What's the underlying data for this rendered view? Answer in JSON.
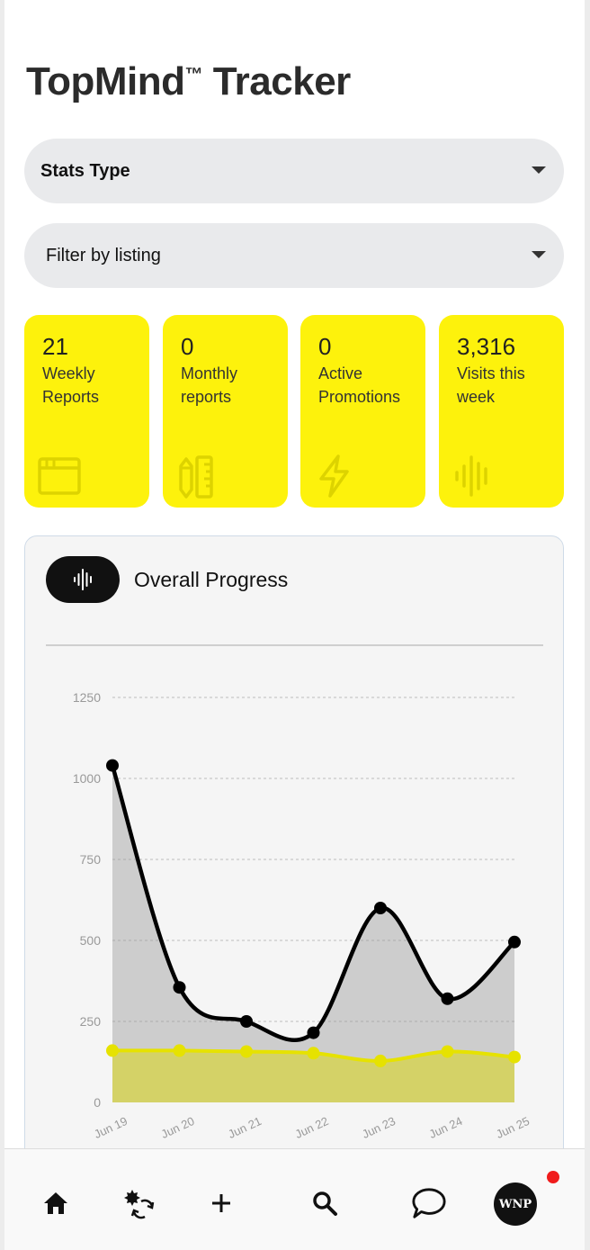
{
  "header": {
    "title": "TopMind",
    "trademark": "™",
    "title_suffix": " Tracker"
  },
  "filters": {
    "stats_type": {
      "label": "Stats Type"
    },
    "listing": {
      "label": "Filter by listing"
    }
  },
  "stats": [
    {
      "value": "21",
      "label": "Weekly\nReports",
      "icon": "browser-window-icon"
    },
    {
      "value": "0",
      "label": "Monthly\nreports",
      "icon": "pencil-ruler-icon"
    },
    {
      "value": "0",
      "label": "Active\nPromotions",
      "icon": "lightning-icon"
    },
    {
      "value": "3,316",
      "label": "Visits this\nweek",
      "icon": "soundwave-icon"
    }
  ],
  "progress": {
    "title": "Overall Progress",
    "icon": "soundwave-icon"
  },
  "colors": {
    "card_bg": "#fdf20c",
    "series_dark": "#000000",
    "series_yellow": "#e6e200"
  },
  "chart_data": {
    "type": "area",
    "categories": [
      "Jun 19",
      "Jun 20",
      "Jun 21",
      "Jun 22",
      "Jun 23",
      "Jun 24",
      "Jun 25"
    ],
    "series": [
      {
        "values": [
          1040,
          355,
          250,
          215,
          600,
          320,
          495
        ],
        "color": "#000000"
      },
      {
        "values": [
          160,
          160,
          157,
          152,
          128,
          157,
          140
        ],
        "color": "#e6e200"
      }
    ],
    "yticks": [
      "0",
      "250",
      "500",
      "750",
      "1000",
      "1250"
    ],
    "ylim": [
      0,
      1250
    ],
    "grid": true,
    "legend": "none"
  },
  "nav": {
    "items": [
      "home-icon",
      "exchange-icon",
      "plus-icon",
      "search-icon",
      "chat-icon"
    ],
    "avatar_text": "WNP"
  }
}
